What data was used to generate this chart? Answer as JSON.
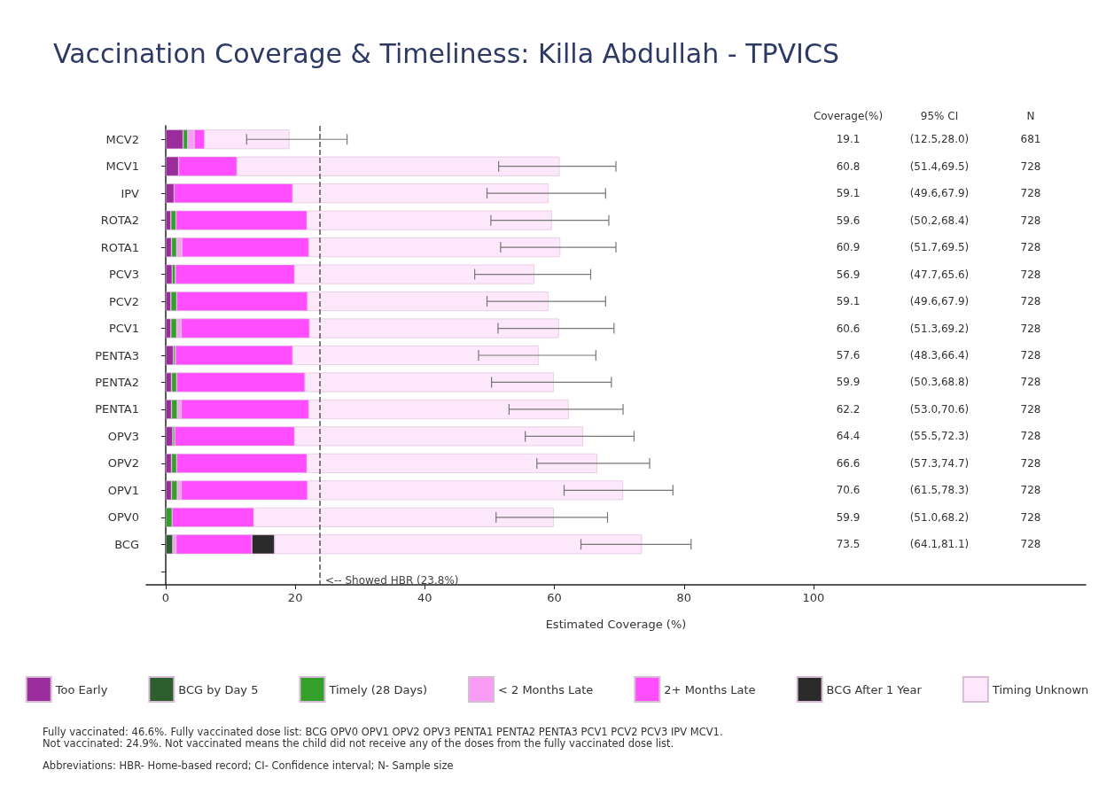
{
  "chart_data": {
    "type": "bar",
    "orientation": "horizontal",
    "stacked": true,
    "title": "Vaccination Coverage & Timeliness: Killa Abdullah - TPVICS",
    "xlabel": "Estimated Coverage (%)",
    "categories": [
      "MCV2",
      "MCV1",
      "IPV",
      "ROTA2",
      "ROTA1",
      "PCV3",
      "PCV2",
      "PCV1",
      "PENTA3",
      "PENTA2",
      "PENTA1",
      "OPV3",
      "OPV2",
      "OPV1",
      "OPV0",
      "BCG"
    ],
    "series": [
      {
        "name": "Too Early",
        "color": "#9b2c9b",
        "values": [
          2.7,
          2.0,
          1.3,
          0.8,
          0.9,
          1.0,
          0.8,
          0.8,
          1.2,
          0.9,
          0.9,
          1.1,
          0.9,
          0.9,
          null,
          null
        ]
      },
      {
        "name": "BCG by Day 5",
        "color": "#2d5e2d",
        "values": [
          null,
          null,
          null,
          null,
          null,
          null,
          null,
          null,
          null,
          null,
          null,
          null,
          null,
          null,
          null,
          1.1
        ]
      },
      {
        "name": "Timely (28 Days)",
        "color": "#33a02c",
        "values": [
          0.7,
          null,
          null,
          0.8,
          0.8,
          0.5,
          0.9,
          0.9,
          0.3,
          0.8,
          0.9,
          0.3,
          0.8,
          0.9,
          1.0,
          null
        ]
      },
      {
        "name": "< 2 Months Late",
        "color": "#f99cf5",
        "values": [
          1.0,
          null,
          null,
          null,
          0.8,
          null,
          null,
          0.7,
          null,
          null,
          0.6,
          null,
          null,
          0.6,
          null,
          0.5
        ]
      },
      {
        "name": "2+ Months Late",
        "color": "#ff4dff",
        "values": [
          1.6,
          9.0,
          18.3,
          20.2,
          19.6,
          18.4,
          20.2,
          19.8,
          18.1,
          19.8,
          19.7,
          18.5,
          20.1,
          19.5,
          12.6,
          11.7
        ]
      },
      {
        "name": "BCG After 1 Year",
        "color": "#2b2b2b",
        "values": [
          null,
          null,
          null,
          null,
          null,
          null,
          null,
          null,
          null,
          null,
          null,
          null,
          null,
          null,
          null,
          3.5
        ]
      },
      {
        "name": "Timing Unknown",
        "color": "#fde7fb",
        "values": [
          13.1,
          49.8,
          39.5,
          37.8,
          38.8,
          37.0,
          37.2,
          38.5,
          38.0,
          38.4,
          40.1,
          44.5,
          44.8,
          48.7,
          46.3,
          56.7
        ],
        "errors": [
          [
            12.5,
            28.0
          ],
          [
            51.4,
            69.5
          ],
          [
            49.6,
            67.9
          ],
          [
            50.2,
            68.4
          ],
          [
            51.7,
            69.5
          ],
          [
            47.7,
            65.6
          ],
          [
            49.6,
            67.9
          ],
          [
            51.3,
            69.2
          ],
          [
            48.3,
            66.4
          ],
          [
            50.3,
            68.8
          ],
          [
            53.0,
            70.6
          ],
          [
            55.5,
            72.3
          ],
          [
            57.3,
            74.7
          ],
          [
            61.5,
            78.3
          ],
          [
            51.0,
            68.2
          ],
          [
            64.1,
            81.1
          ]
        ]
      }
    ],
    "xlim": [
      -3,
      142
    ],
    "xticks": [
      0,
      20,
      40,
      60,
      80,
      100
    ],
    "grid": false,
    "legend": "bottom",
    "ref_lines": [
      {
        "axis": "x",
        "value": 23.8,
        "label": "<-- Showed HBR (23.8%)",
        "line_style": "dashed",
        "color": "#555555"
      }
    ],
    "annotations": [
      "Coverage(%)",
      "95% CI",
      "N",
      "19.1",
      "(12.5,28.0)",
      "681",
      "60.8",
      "(51.4,69.5)",
      "728",
      "59.1",
      "(49.6,67.9)",
      "728",
      "59.6",
      "(50.2,68.4)",
      "728",
      "60.9",
      "(51.7,69.5)",
      "728",
      "56.9",
      "(47.7,65.6)",
      "728",
      "59.1",
      "(49.6,67.9)",
      "728",
      "60.6",
      "(51.3,69.2)",
      "728",
      "57.6",
      "(48.3,66.4)",
      "728",
      "59.9",
      "(50.3,68.8)",
      "728",
      "62.2",
      "(53.0,70.6)",
      "728",
      "64.4",
      "(55.5,72.3)",
      "728",
      "66.6",
      "(57.3,74.7)",
      "728",
      "70.6",
      "(61.5,78.3)",
      "728",
      "59.9",
      "(51.0,68.2)",
      "728",
      "73.5",
      "(64.1,81.1)",
      "728",
      "Fully vaccinated: 46.6%. Fully vaccinated dose list: BCG OPV0 OPV1 OPV2 OPV3 PENTA1 PENTA2 PENTA3 PCV1 PCV2 PCV3 IPV MCV1.",
      "Not vaccinated: 24.9%. Not vaccinated means the child did not receive any of the doses from the fully vaccinated dose list.",
      "Abbreviations: HBR- Home-based record; CI- Confidence interval; N- Sample size"
    ]
  }
}
